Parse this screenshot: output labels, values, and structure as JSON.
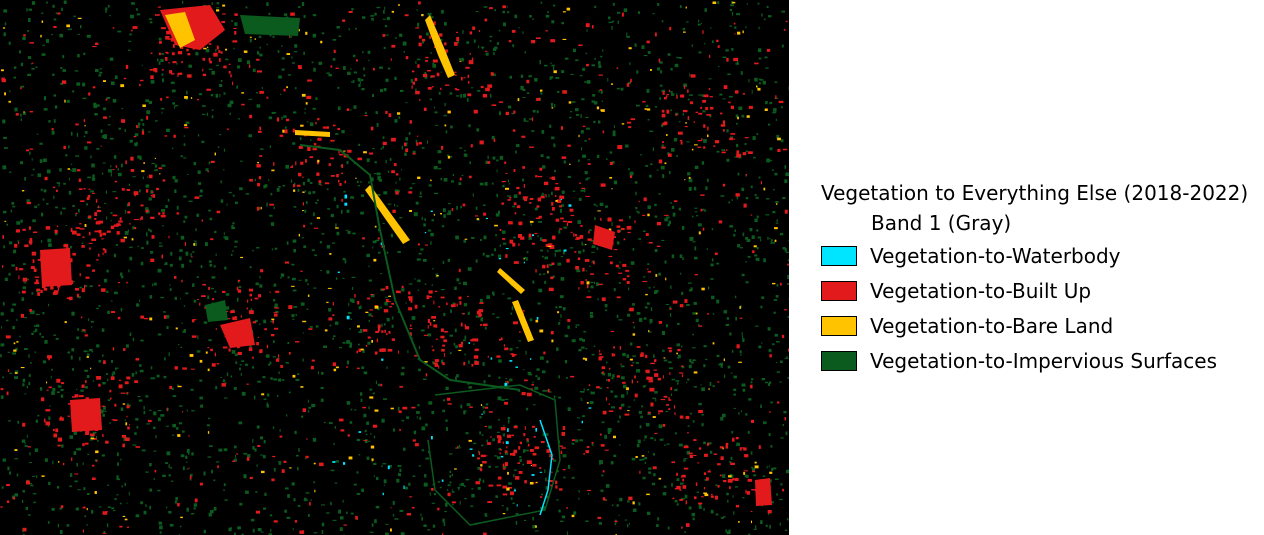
{
  "legend": {
    "title": "Vegetation to Everything Else (2018-2022)",
    "band": "Band 1 (Gray)",
    "items": [
      {
        "label": "Vegetation-to-Waterbody",
        "color": "#00e5ff"
      },
      {
        "label": "Vegetation-to-Built Up",
        "color": "#e31a1c"
      },
      {
        "label": "Vegetation-to-Bare Land",
        "color": "#ffc300"
      },
      {
        "label": "Vegetation-to-Impervious Surfaces",
        "color": "#0b5a1e"
      }
    ]
  },
  "map": {
    "background": "#000000"
  }
}
